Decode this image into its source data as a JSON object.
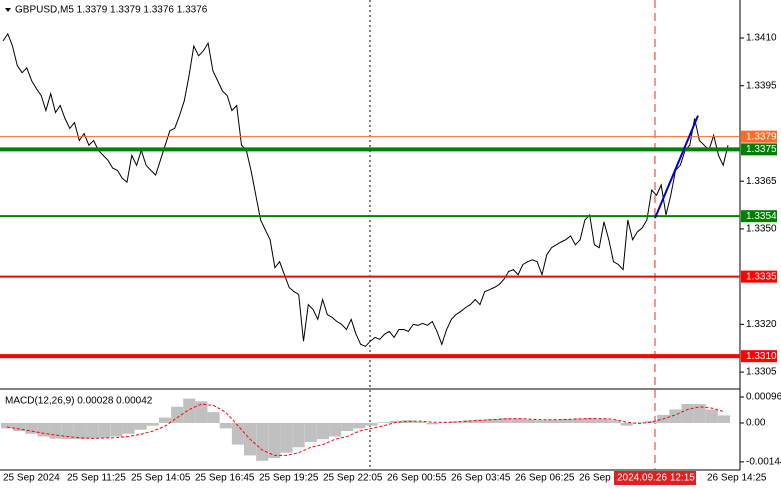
{
  "chart_data": [
    {
      "type": "line",
      "title": "GBPUSD,M5  1.3379 1.3379 1.3376 1.3376",
      "series": [
        {
          "color": "#000000",
          "values": [
            1.34091,
            1.34113,
            1.34075,
            1.34013,
            1.33991,
            1.34006,
            1.33966,
            1.33941,
            1.33919,
            1.33872,
            1.33925,
            1.33866,
            1.33888,
            1.33847,
            1.33816,
            1.33834,
            1.33778,
            1.338,
            1.33763,
            1.33778,
            1.33747,
            1.33731,
            1.33716,
            1.33691,
            1.33684,
            1.33659,
            1.33647,
            1.33731,
            1.337,
            1.33747,
            1.337,
            1.33684,
            1.33669,
            1.33716,
            1.33763,
            1.33809,
            1.33816,
            1.33856,
            1.33903,
            1.33981,
            1.34075,
            1.34044,
            1.34059,
            1.34084,
            1.33997,
            1.33966,
            1.33934,
            1.33919,
            1.33872,
            1.33888,
            1.33763,
            1.33747,
            1.33684,
            1.33606,
            1.33528,
            1.33497,
            1.33466,
            1.33378,
            1.33397,
            1.33356,
            1.33316,
            1.33303,
            1.33294,
            1.33147,
            1.33262,
            1.33247,
            1.33216,
            1.33278,
            1.33231,
            1.33222,
            1.33209,
            1.332,
            1.33184,
            1.33216,
            1.33169,
            1.33137,
            1.33131,
            1.33147,
            1.33159,
            1.33153,
            1.33169,
            1.33178,
            1.33159,
            1.33184,
            1.33184,
            1.33178,
            1.332,
            1.33197,
            1.33203,
            1.33197,
            1.33209,
            1.33178,
            1.33137,
            1.33184,
            1.33216,
            1.33231,
            1.33241,
            1.33253,
            1.33262,
            1.33278,
            1.33262,
            1.33303,
            1.33309,
            1.33316,
            1.33325,
            1.33341,
            1.33366,
            1.33372,
            1.33356,
            1.33388,
            1.33397,
            1.33403,
            1.33397,
            1.33356,
            1.33419,
            1.33441,
            1.3345,
            1.33459,
            1.33466,
            1.33478,
            1.3345,
            1.33466,
            1.33528,
            1.33544,
            1.3345,
            1.33441,
            1.33522,
            1.33466,
            1.33397,
            1.33388,
            1.33372,
            1.33528,
            1.33466,
            1.33491,
            1.33503,
            1.33528,
            1.33622,
            1.33606,
            1.33638,
            1.33544,
            1.33606,
            1.33684,
            1.337,
            1.33747,
            1.33763,
            1.33847,
            1.33778,
            1.33763,
            1.33747,
            1.33794,
            1.33731,
            1.337,
            1.33763
          ]
        }
      ],
      "ylim": [
        1.33,
        1.3421
      ],
      "yticks": [
        {
          "value": 1.341,
          "label": "1.3410"
        },
        {
          "value": 1.3395,
          "label": "1.3395"
        },
        {
          "value": 1.3365,
          "label": "1.3365"
        },
        {
          "value": 1.335,
          "label": "1.3350"
        },
        {
          "value": 1.332,
          "label": "1.3320"
        },
        {
          "value": 1.3305,
          "label": "1.3305"
        }
      ],
      "levels": [
        {
          "value": 1.3379,
          "label": "1.3379",
          "color": "#ff6a2a"
        },
        {
          "value": 1.3375,
          "label": "1.3375",
          "color": "#008000",
          "bold": true
        },
        {
          "value": 1.3354,
          "label": "1.3354",
          "color": "#008000"
        },
        {
          "value": 1.3335,
          "label": "1.3335",
          "color": "#ff0000"
        },
        {
          "value": 1.331,
          "label": "1.3310",
          "color": "#ff0000",
          "bold": true
        }
      ],
      "trendline": {
        "color": "#0000cc",
        "values": [
          1.33534,
          1.33856
        ]
      }
    },
    {
      "type": "bar",
      "title": "MACD(12,26,9) 0.00028 0.00042",
      "series": [
        {
          "color": "#c0c0c0",
          "values": [
            -0.0002,
            -0.0003,
            -0.0004,
            -0.0005,
            -0.00058,
            -0.0006,
            -0.0006,
            -0.00058,
            -0.00055,
            -0.0005,
            -0.0004,
            -0.00025,
            -0.0001,
            0.0002,
            0.0006,
            0.0009,
            0.0008,
            0.0004,
            -0.0002,
            -0.0008,
            -0.0012,
            -0.0014,
            -0.0013,
            -0.0011,
            -0.0009,
            -0.0007,
            -0.0006,
            -0.0005,
            -0.0003,
            -0.0002,
            -0.0001,
            3e-05,
            8e-05,
            0.0001,
            5e-05,
            -5e-05,
            2e-05,
            6e-05,
            0.0001,
            0.00012,
            0.00015,
            0.00018,
            0.00016,
            0.00012,
            0.0001,
            0.00012,
            0.00015,
            0.00016,
            0.00018,
            0.00015,
            0.0001,
            -0.0001,
            2e-05,
            8e-05,
            0.0003,
            0.0005,
            0.0007,
            0.0007,
            0.0005,
            0.00028
          ]
        },
        {
          "color": "#ff0000",
          "dashed": true,
          "values": [
            -0.00015,
            -0.00022,
            -0.0003,
            -0.00038,
            -0.00045,
            -0.0005,
            -0.00055,
            -0.00057,
            -0.00056,
            -0.00054,
            -0.0005,
            -0.00042,
            -0.0003,
            -0.00012,
            0.0002,
            0.0005,
            0.0007,
            0.00065,
            0.0004,
            -0.0001,
            -0.0006,
            -0.001,
            -0.0012,
            -0.0012,
            -0.0011,
            -0.0009,
            -0.0008,
            -0.0006,
            -0.0005,
            -0.0003,
            -0.0002,
            -0.0001,
            2e-05,
            6e-05,
            7e-05,
            3e-05,
            2e-05,
            4e-05,
            7e-05,
            0.0001,
            0.00012,
            0.00015,
            0.00016,
            0.00014,
            0.00012,
            0.00012,
            0.00013,
            0.00015,
            0.00016,
            0.00016,
            0.00013,
            2e-05,
            -2e-05,
            3e-05,
            0.00015,
            0.0003,
            0.0005,
            0.0006,
            0.00055,
            0.00042
          ]
        }
      ],
      "ylim": [
        -0.00174,
        0.00122
      ],
      "yticks": [
        0.00096,
        {
          "value": 0,
          "label": "0.00"
        },
        -0.00144
      ]
    }
  ],
  "time_axis": {
    "labels": [
      "25 Sep 2024",
      "25 Sep 11:25",
      "25 Sep 14:05",
      "25 Sep 16:45",
      "25 Sep 19:25",
      "25 Sep 22:05",
      "26 Sep 00:55",
      "26 Sep 03:45",
      "26 Sep 06:25",
      "26 Sep 0",
      null,
      "26 Sep 14:25"
    ],
    "cursor": "2024.09.26 12:15"
  }
}
